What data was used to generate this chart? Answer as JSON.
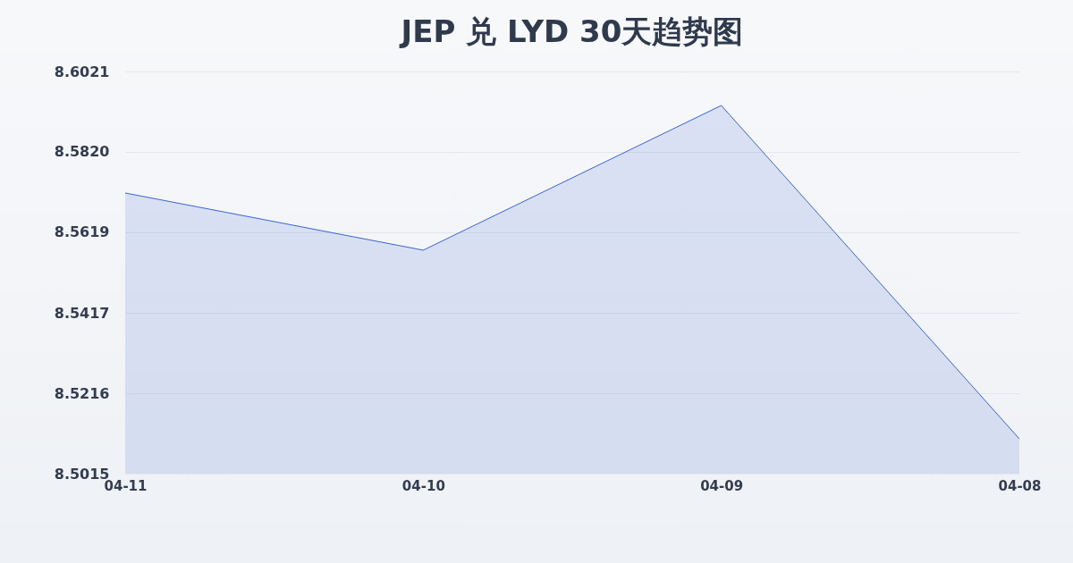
{
  "chart_data": {
    "type": "area",
    "title": "JEP 兑 LYD 30天趋势图",
    "categories": [
      "04-11",
      "04-10",
      "04-09",
      "04-08"
    ],
    "series": [
      {
        "color": "#3a64d0",
        "values": [
          8.5717,
          8.5574,
          8.5936,
          8.5102
        ]
      }
    ],
    "ylim": [
      8.5015,
      8.6021
    ],
    "yticks": [
      8.5015,
      8.5216,
      8.5417,
      8.5619,
      {
        "value": 8.582,
        "label": "8.5820"
      },
      8.6021
    ],
    "grid": "y"
  }
}
